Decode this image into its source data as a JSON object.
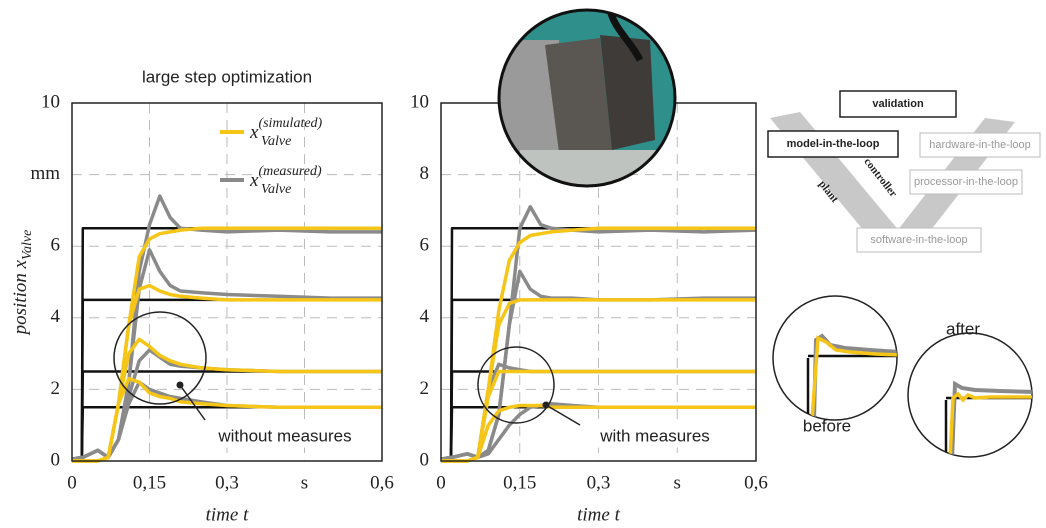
{
  "chart_data": [
    {
      "type": "line",
      "title": "large step optimization",
      "xlabel": "time t",
      "ylabel": "position x",
      "ylabel_sub": "Valve",
      "annotation": "without measures",
      "grid": true,
      "xlim": [
        0,
        0.6
      ],
      "ylim": [
        0,
        10
      ],
      "xticks": [
        0,
        {
          "value": 0.15,
          "label": "0,15"
        },
        {
          "value": 0.3,
          "label": "0,3"
        },
        {
          "value": 0.45,
          "label": "s"
        },
        {
          "value": 0.6,
          "label": "0,6"
        }
      ],
      "yticks": [
        0,
        2,
        4,
        6,
        {
          "value": 8,
          "label": "mm"
        },
        10
      ],
      "x": [
        0,
        0.019,
        0.021,
        0.05,
        0.07,
        0.09,
        0.11,
        0.13,
        0.15,
        0.17,
        0.19,
        0.21,
        0.25,
        0.3,
        0.4,
        0.5,
        0.6
      ],
      "series": [
        {
          "color": "#111111",
          "values": [
            0,
            0,
            6.5,
            6.5,
            6.5,
            6.5,
            6.5,
            6.5,
            6.5,
            6.5,
            6.5,
            6.5,
            6.5,
            6.5,
            6.5,
            6.5,
            6.5
          ]
        },
        {
          "color": "#111111",
          "values": [
            0,
            0,
            4.5,
            4.5,
            4.5,
            4.5,
            4.5,
            4.5,
            4.5,
            4.5,
            4.5,
            4.5,
            4.5,
            4.5,
            4.5,
            4.5,
            4.5
          ]
        },
        {
          "color": "#111111",
          "values": [
            0,
            0,
            2.5,
            2.5,
            2.5,
            2.5,
            2.5,
            2.5,
            2.5,
            2.5,
            2.5,
            2.5,
            2.5,
            2.5,
            2.5,
            2.5,
            2.5
          ]
        },
        {
          "color": "#111111",
          "values": [
            0,
            0,
            1.5,
            1.5,
            1.5,
            1.5,
            1.5,
            1.5,
            1.5,
            1.5,
            1.5,
            1.5,
            1.5,
            1.5,
            1.5,
            1.5,
            1.5
          ]
        },
        {
          "name": "x",
          "legend_sup": "(measured)",
          "legend_sub": "Valve",
          "color": "#8a8a8a",
          "values": [
            0.05,
            0.1,
            0.1,
            0.3,
            0.1,
            0.6,
            2.2,
            5.3,
            6.6,
            7.4,
            6.8,
            6.5,
            6.45,
            6.4,
            6.45,
            6.4,
            6.4
          ]
        },
        {
          "color": "#8a8a8a",
          "values": [
            0.05,
            0.1,
            0.1,
            0.3,
            0.1,
            0.6,
            2.2,
            4.8,
            5.9,
            5.3,
            4.9,
            4.75,
            4.7,
            4.65,
            4.6,
            4.55,
            4.55
          ]
        },
        {
          "color": "#8a8a8a",
          "values": [
            0.05,
            0.1,
            0.1,
            0.3,
            0.1,
            0.6,
            1.8,
            2.8,
            3.1,
            2.9,
            2.7,
            2.65,
            2.6,
            2.55,
            2.5,
            2.5,
            2.5
          ]
        },
        {
          "color": "#8a8a8a",
          "values": [
            0.05,
            0.1,
            0.1,
            0.3,
            0.1,
            0.6,
            1.6,
            2.2,
            2.0,
            1.9,
            1.8,
            1.75,
            1.65,
            1.55,
            1.5,
            1.5,
            1.5
          ]
        },
        {
          "name": "x",
          "legend_sup": "(simulated)",
          "legend_sub": "Valve",
          "color": "#f5c518",
          "values": [
            0,
            0,
            0,
            0,
            0.1,
            1.6,
            3.8,
            5.7,
            6.2,
            6.35,
            6.4,
            6.45,
            6.5,
            6.5,
            6.5,
            6.5,
            6.5
          ]
        },
        {
          "color": "#f5c518",
          "values": [
            0,
            0,
            0,
            0,
            0.1,
            1.6,
            3.8,
            4.8,
            4.9,
            4.75,
            4.65,
            4.6,
            4.55,
            4.5,
            4.5,
            4.5,
            4.5
          ]
        },
        {
          "color": "#f5c518",
          "values": [
            0,
            0,
            0,
            0,
            0.1,
            1.6,
            3.0,
            3.4,
            3.2,
            2.95,
            2.8,
            2.7,
            2.6,
            2.55,
            2.5,
            2.5,
            2.5
          ]
        },
        {
          "color": "#f5c518",
          "values": [
            0,
            0,
            0,
            0,
            0.1,
            1.6,
            2.3,
            2.2,
            1.9,
            1.8,
            1.75,
            1.65,
            1.6,
            1.55,
            1.5,
            1.5,
            1.5
          ]
        }
      ]
    },
    {
      "type": "line",
      "xlabel": "time t",
      "annotation": "with measures",
      "grid": true,
      "xlim": [
        0,
        0.6
      ],
      "ylim": [
        0,
        10
      ],
      "xticks": [
        0,
        {
          "value": 0.15,
          "label": "0,15"
        },
        {
          "value": 0.3,
          "label": "0,3"
        },
        {
          "value": 0.45,
          "label": "s"
        },
        {
          "value": 0.6,
          "label": "0,6"
        }
      ],
      "yticks": [
        0,
        2,
        4,
        6,
        8,
        10
      ],
      "x": [
        0,
        0.019,
        0.021,
        0.05,
        0.07,
        0.09,
        0.11,
        0.13,
        0.15,
        0.17,
        0.19,
        0.21,
        0.25,
        0.3,
        0.4,
        0.5,
        0.6
      ],
      "series": [
        {
          "color": "#111111",
          "values": [
            0,
            0,
            6.5,
            6.5,
            6.5,
            6.5,
            6.5,
            6.5,
            6.5,
            6.5,
            6.5,
            6.5,
            6.5,
            6.5,
            6.5,
            6.5,
            6.5
          ]
        },
        {
          "color": "#111111",
          "values": [
            0,
            0,
            4.5,
            4.5,
            4.5,
            4.5,
            4.5,
            4.5,
            4.5,
            4.5,
            4.5,
            4.5,
            4.5,
            4.5,
            4.5,
            4.5,
            4.5
          ]
        },
        {
          "color": "#111111",
          "values": [
            0,
            0,
            2.5,
            2.5,
            2.5,
            2.5,
            2.5,
            2.5,
            2.5,
            2.5,
            2.5,
            2.5,
            2.5,
            2.5,
            2.5,
            2.5,
            2.5
          ]
        },
        {
          "color": "#111111",
          "values": [
            0,
            0,
            1.5,
            1.5,
            1.5,
            1.5,
            1.5,
            1.5,
            1.5,
            1.5,
            1.5,
            1.5,
            1.5,
            1.5,
            1.5,
            1.5,
            1.5
          ]
        },
        {
          "color": "#8a8a8a",
          "values": [
            0.05,
            0.1,
            0.1,
            0.2,
            0.1,
            0.3,
            1.3,
            3.8,
            6.5,
            7.1,
            6.6,
            6.5,
            6.45,
            6.4,
            6.45,
            6.4,
            6.45
          ]
        },
        {
          "color": "#8a8a8a",
          "values": [
            0.05,
            0.1,
            0.1,
            0.2,
            0.1,
            0.3,
            1.3,
            3.8,
            5.3,
            4.8,
            4.6,
            4.55,
            4.55,
            4.5,
            4.5,
            4.55,
            4.55
          ]
        },
        {
          "color": "#8a8a8a",
          "values": [
            0.05,
            0.1,
            0.1,
            0.2,
            0.1,
            2.0,
            2.7,
            2.6,
            2.55,
            2.5,
            2.5,
            2.5,
            2.5,
            2.5,
            2.5,
            2.5,
            2.5
          ]
        },
        {
          "color": "#8a8a8a",
          "values": [
            0.05,
            0.1,
            0.1,
            0.2,
            0.1,
            0.2,
            0.6,
            1.0,
            1.3,
            1.5,
            1.55,
            1.6,
            1.55,
            1.5,
            1.5,
            1.5,
            1.5
          ]
        },
        {
          "color": "#f5c518",
          "values": [
            0,
            0,
            0,
            0,
            0.1,
            2.0,
            4.2,
            5.6,
            6.1,
            6.3,
            6.35,
            6.4,
            6.45,
            6.5,
            6.5,
            6.5,
            6.5
          ]
        },
        {
          "color": "#f5c518",
          "values": [
            0,
            0,
            0,
            0,
            0.1,
            2.0,
            3.8,
            4.4,
            4.5,
            4.5,
            4.5,
            4.5,
            4.5,
            4.5,
            4.5,
            4.5,
            4.5
          ]
        },
        {
          "color": "#f5c518",
          "values": [
            0,
            0,
            0,
            0,
            0.1,
            1.8,
            2.5,
            2.5,
            2.5,
            2.5,
            2.5,
            2.5,
            2.5,
            2.5,
            2.5,
            2.5,
            2.5
          ]
        },
        {
          "color": "#f5c518",
          "values": [
            0,
            0,
            0,
            0,
            0.1,
            1.0,
            1.4,
            1.5,
            1.55,
            1.55,
            1.55,
            1.5,
            1.5,
            1.5,
            1.5,
            1.5,
            1.5
          ]
        }
      ]
    }
  ],
  "diagram": {
    "validation": "validation",
    "mil": "model-in-the-loop",
    "hil": "hardware-in-the-loop",
    "pil": "processor-in-the-loop",
    "sil": "software-in-the-loop",
    "plant": "plant",
    "controller": "controller"
  },
  "insets": {
    "before": "before",
    "after": "after"
  }
}
